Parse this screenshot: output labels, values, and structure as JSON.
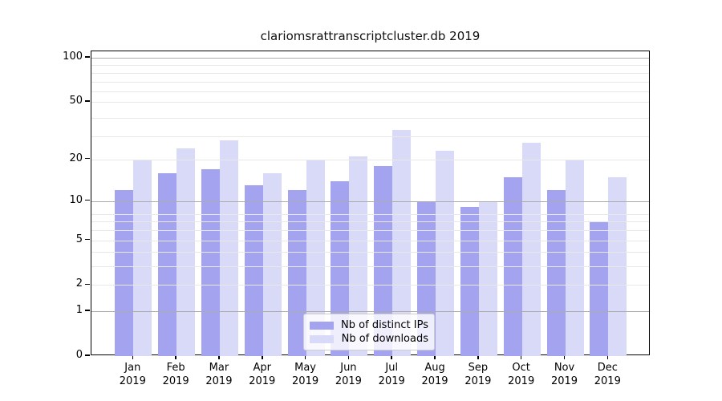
{
  "title": "clariomsrattranscriptcluster.db 2019",
  "chart_data": {
    "type": "bar",
    "title": "clariomsrattranscriptcluster.db 2019",
    "xlabel": "",
    "ylabel": "",
    "scale": "log1p",
    "categories": [
      "Jan",
      "Feb",
      "Mar",
      "Apr",
      "May",
      "Jun",
      "Jul",
      "Aug",
      "Sep",
      "Oct",
      "Nov",
      "Dec"
    ],
    "category_year": "2019",
    "series": [
      {
        "name": "Nb of distinct IPs",
        "color": "#a3a3f0",
        "values": [
          12,
          16,
          17,
          13,
          12,
          14,
          18,
          10,
          9,
          15,
          12,
          7
        ]
      },
      {
        "name": "Nb of downloads",
        "color": "#d9d9f8",
        "values": [
          20,
          24,
          27,
          16,
          20,
          21,
          32,
          23,
          10,
          26,
          20,
          15
        ]
      }
    ],
    "yticks": [
      0,
      1,
      2,
      5,
      10,
      20,
      50,
      100
    ],
    "ylim": [
      0,
      111
    ],
    "grid": {
      "on": true,
      "minor_levels_log1p": [
        3,
        4,
        5,
        6,
        7,
        8,
        9,
        21,
        30,
        40,
        51,
        60,
        70,
        80,
        90
      ],
      "major_tick_values": [
        1,
        10,
        100
      ],
      "minor_color": "#e8e8e8",
      "major_color": "#ababab"
    },
    "legend": {
      "position": "lower center",
      "entries": [
        "Nb of distinct IPs",
        "Nb of downloads"
      ]
    }
  }
}
